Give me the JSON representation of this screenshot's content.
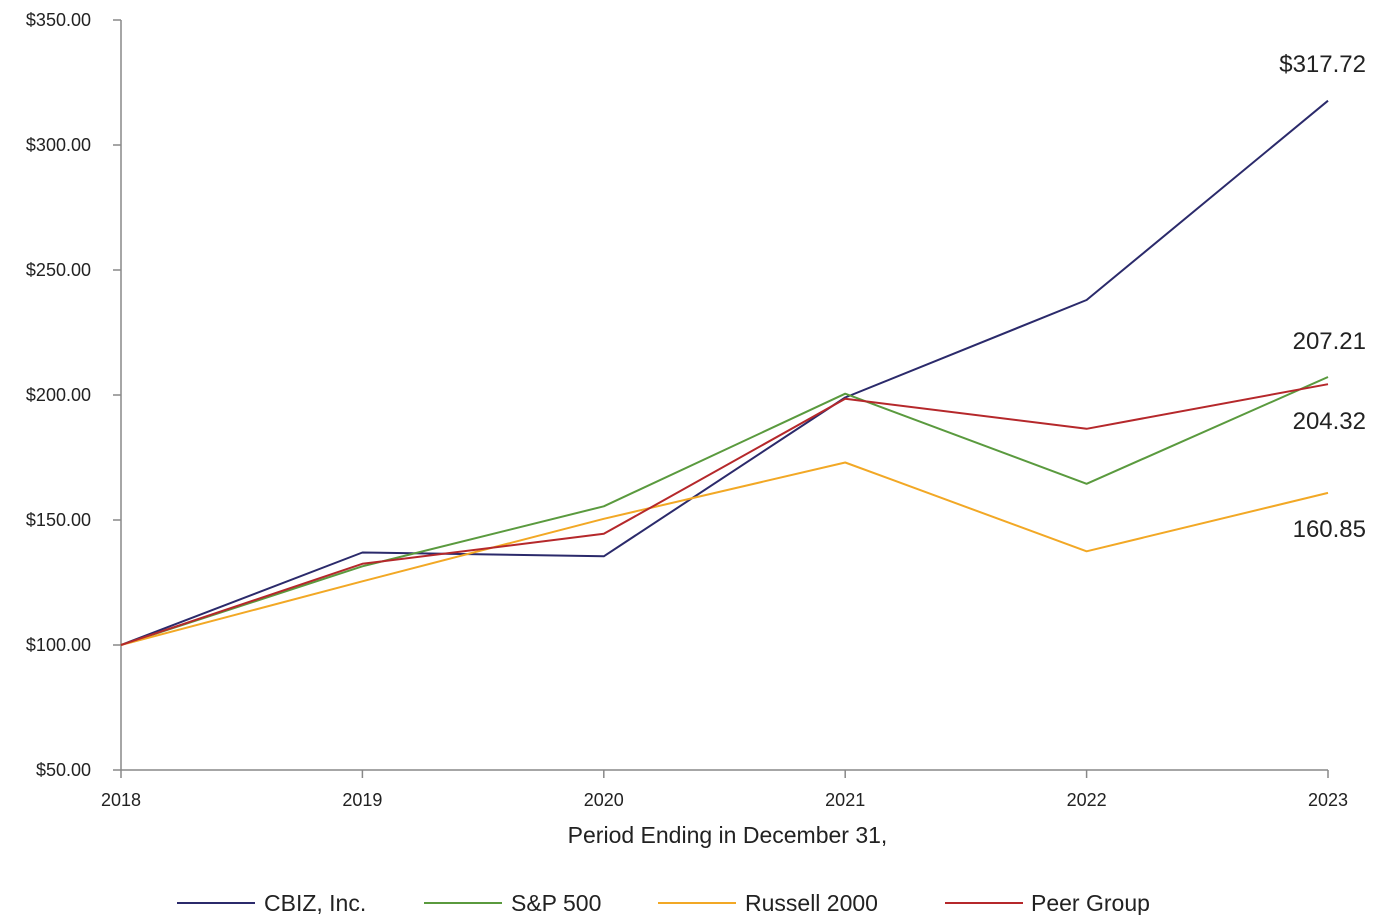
{
  "chart_data": {
    "type": "line",
    "title": "",
    "xlabel": "Period Ending in December 31,",
    "ylabel": "",
    "x": [
      "2018",
      "2019",
      "2020",
      "2021",
      "2022",
      "2023"
    ],
    "ylim": [
      50,
      350
    ],
    "y_ticks": [
      50,
      100,
      150,
      200,
      250,
      300,
      350
    ],
    "y_tick_labels": [
      "$50.00",
      "$100.00",
      "$150.00",
      "$200.00",
      "$250.00",
      "$300.00",
      "$350.00"
    ],
    "grid": false,
    "legend_position": "bottom",
    "series": [
      {
        "name": "CBIZ, Inc.",
        "color": "#2b2a6b",
        "values": [
          100,
          137,
          135.5,
          199,
          238,
          317.72
        ]
      },
      {
        "name": "S&P 500",
        "color": "#5a9a3e",
        "values": [
          100,
          131.5,
          155.5,
          200.5,
          164.5,
          207.21
        ]
      },
      {
        "name": "Russell 2000",
        "color": "#f2a825",
        "values": [
          100,
          125.5,
          150.5,
          173,
          137.5,
          160.85
        ]
      },
      {
        "name": "Peer Group",
        "color": "#b5282b",
        "values": [
          100,
          132.5,
          144.5,
          198.5,
          186.5,
          204.32
        ]
      }
    ],
    "end_labels": [
      {
        "text": "$317.72",
        "value": 317.72
      },
      {
        "text": "207.21",
        "value": 207.21
      },
      {
        "text": "204.32",
        "value": 204.32
      },
      {
        "text": "160.85",
        "value": 160.85
      }
    ]
  }
}
